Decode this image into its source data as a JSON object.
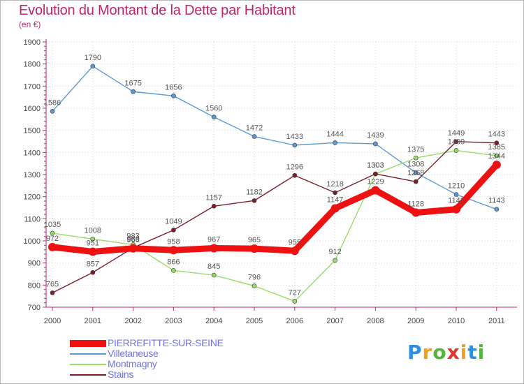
{
  "title": "Evolution du Montant de la Dette par Habitant",
  "unit_label": "(en €)",
  "logo": {
    "letters": [
      "P",
      "r",
      "o",
      "x",
      "i",
      "t",
      "i"
    ],
    "colors": [
      "#2e8fe0",
      "#f0a020",
      "#4fb63a",
      "#e6332a",
      "#f0a020",
      "#2e8fe0",
      "#4fb63a"
    ]
  },
  "chart_data": {
    "type": "line",
    "x": [
      "2000",
      "2001",
      "2002",
      "2003",
      "2004",
      "2005",
      "2006",
      "2007",
      "2008",
      "2009",
      "2010",
      "2011"
    ],
    "ylim": [
      700,
      1900
    ],
    "yticks": [
      "700",
      "800",
      "900",
      "1000",
      "1100",
      "1200",
      "1300",
      "1400",
      "1500",
      "1600",
      "1700",
      "1800",
      "1900"
    ],
    "grid": true,
    "legend_position": "bottom-left",
    "series": [
      {
        "name": "PIERREFITTE-SUR-SEINE",
        "color": "#ee1111",
        "bold": true,
        "values": [
          972,
          951,
          966,
          958,
          967,
          965,
          955,
          1147,
          1229,
          1128,
          1143,
          1344
        ],
        "labels": [
          "972",
          "951",
          "966",
          "958",
          "967",
          "965",
          "955",
          "1147",
          "1229",
          "1128",
          "1143",
          "1344"
        ]
      },
      {
        "name": "Villetaneuse",
        "color": "#5b9bd5",
        "bold": false,
        "values": [
          1586,
          1790,
          1675,
          1656,
          1560,
          1472,
          1433,
          1444,
          1439,
          1308,
          1210,
          1143
        ],
        "labels": [
          "1586",
          "1790",
          "1675",
          "1656",
          "1560",
          "1472",
          "1433",
          "1444",
          "1439",
          "1308",
          "1210",
          "1143"
        ]
      },
      {
        "name": "Montmagny",
        "color": "#99dd66",
        "bold": false,
        "values": [
          1035,
          1008,
          983,
          866,
          845,
          796,
          727,
          912,
          1303,
          1375,
          1409,
          1385
        ],
        "labels": [
          "1035",
          "1008",
          "983",
          "866",
          "845",
          "796",
          "727",
          "912",
          "1303",
          "1375",
          "1409",
          "1385"
        ]
      },
      {
        "name": "Stains",
        "color": "#7a1f2b",
        "bold": false,
        "values": [
          765,
          857,
          969,
          1049,
          1157,
          1182,
          1296,
          1218,
          1303,
          1268,
          1449,
          1443
        ],
        "labels": [
          "765",
          "857",
          "969",
          "1049",
          "1157",
          "1182",
          "1296",
          "1218",
          "1303",
          "1268",
          "1449",
          "1443"
        ]
      }
    ]
  }
}
